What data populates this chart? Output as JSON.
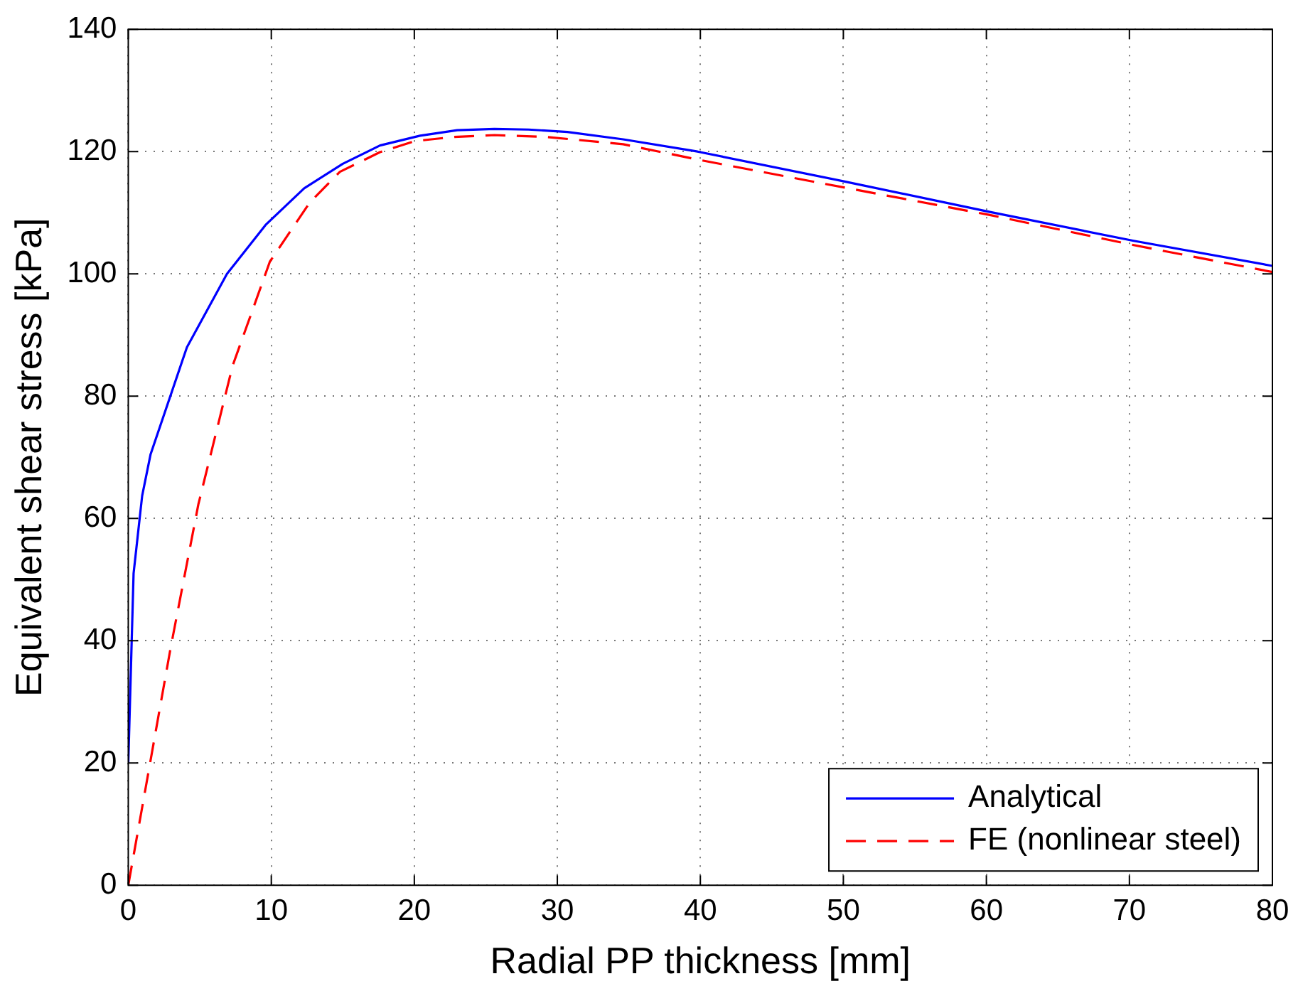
{
  "chart_data": {
    "type": "line",
    "xlabel": "Radial PP thickness [mm]",
    "ylabel": "Equivalent shear stress [kPa]",
    "xlim": [
      0,
      80
    ],
    "ylim": [
      0,
      140
    ],
    "xticks": [
      0,
      10,
      20,
      30,
      40,
      50,
      60,
      70,
      80
    ],
    "yticks": [
      0,
      20,
      40,
      60,
      80,
      100,
      120,
      140
    ],
    "grid": true,
    "legend": "bottom right",
    "marker": "none",
    "series": [
      {
        "name": "Analytical",
        "color": "#0000ff",
        "line_style": "solid",
        "x": [
          0,
          0.37,
          0.97,
          1.56,
          4.1,
          6.9,
          9.6,
          12.3,
          15,
          17.6,
          20.4,
          23,
          25.6,
          28,
          30.7,
          34.6,
          39.8,
          50.1,
          60.3,
          70.3,
          80
        ],
        "values": [
          20,
          51,
          63.7,
          70.5,
          88,
          100,
          108,
          114,
          118,
          121,
          122.6,
          123.5,
          123.7,
          123.6,
          123.2,
          122,
          120,
          115.1,
          110.1,
          105.4,
          101.3
        ]
      },
      {
        "name": "FE (nonlinear steel)",
        "color": "#ff0000",
        "line_style": "dashed",
        "x": [
          0,
          2.95,
          4.9,
          7.3,
          9.9,
          12.7,
          14.8,
          17.6,
          20,
          22.8,
          25.6,
          29.2,
          34.6,
          39.8,
          50.1,
          60.3,
          70.3,
          80
        ],
        "values": [
          0,
          38.7,
          62.3,
          85,
          102,
          111.7,
          116.7,
          119.9,
          121.7,
          122.4,
          122.7,
          122.4,
          121.2,
          118.7,
          114.1,
          109.6,
          104.7,
          100.3
        ]
      }
    ]
  }
}
